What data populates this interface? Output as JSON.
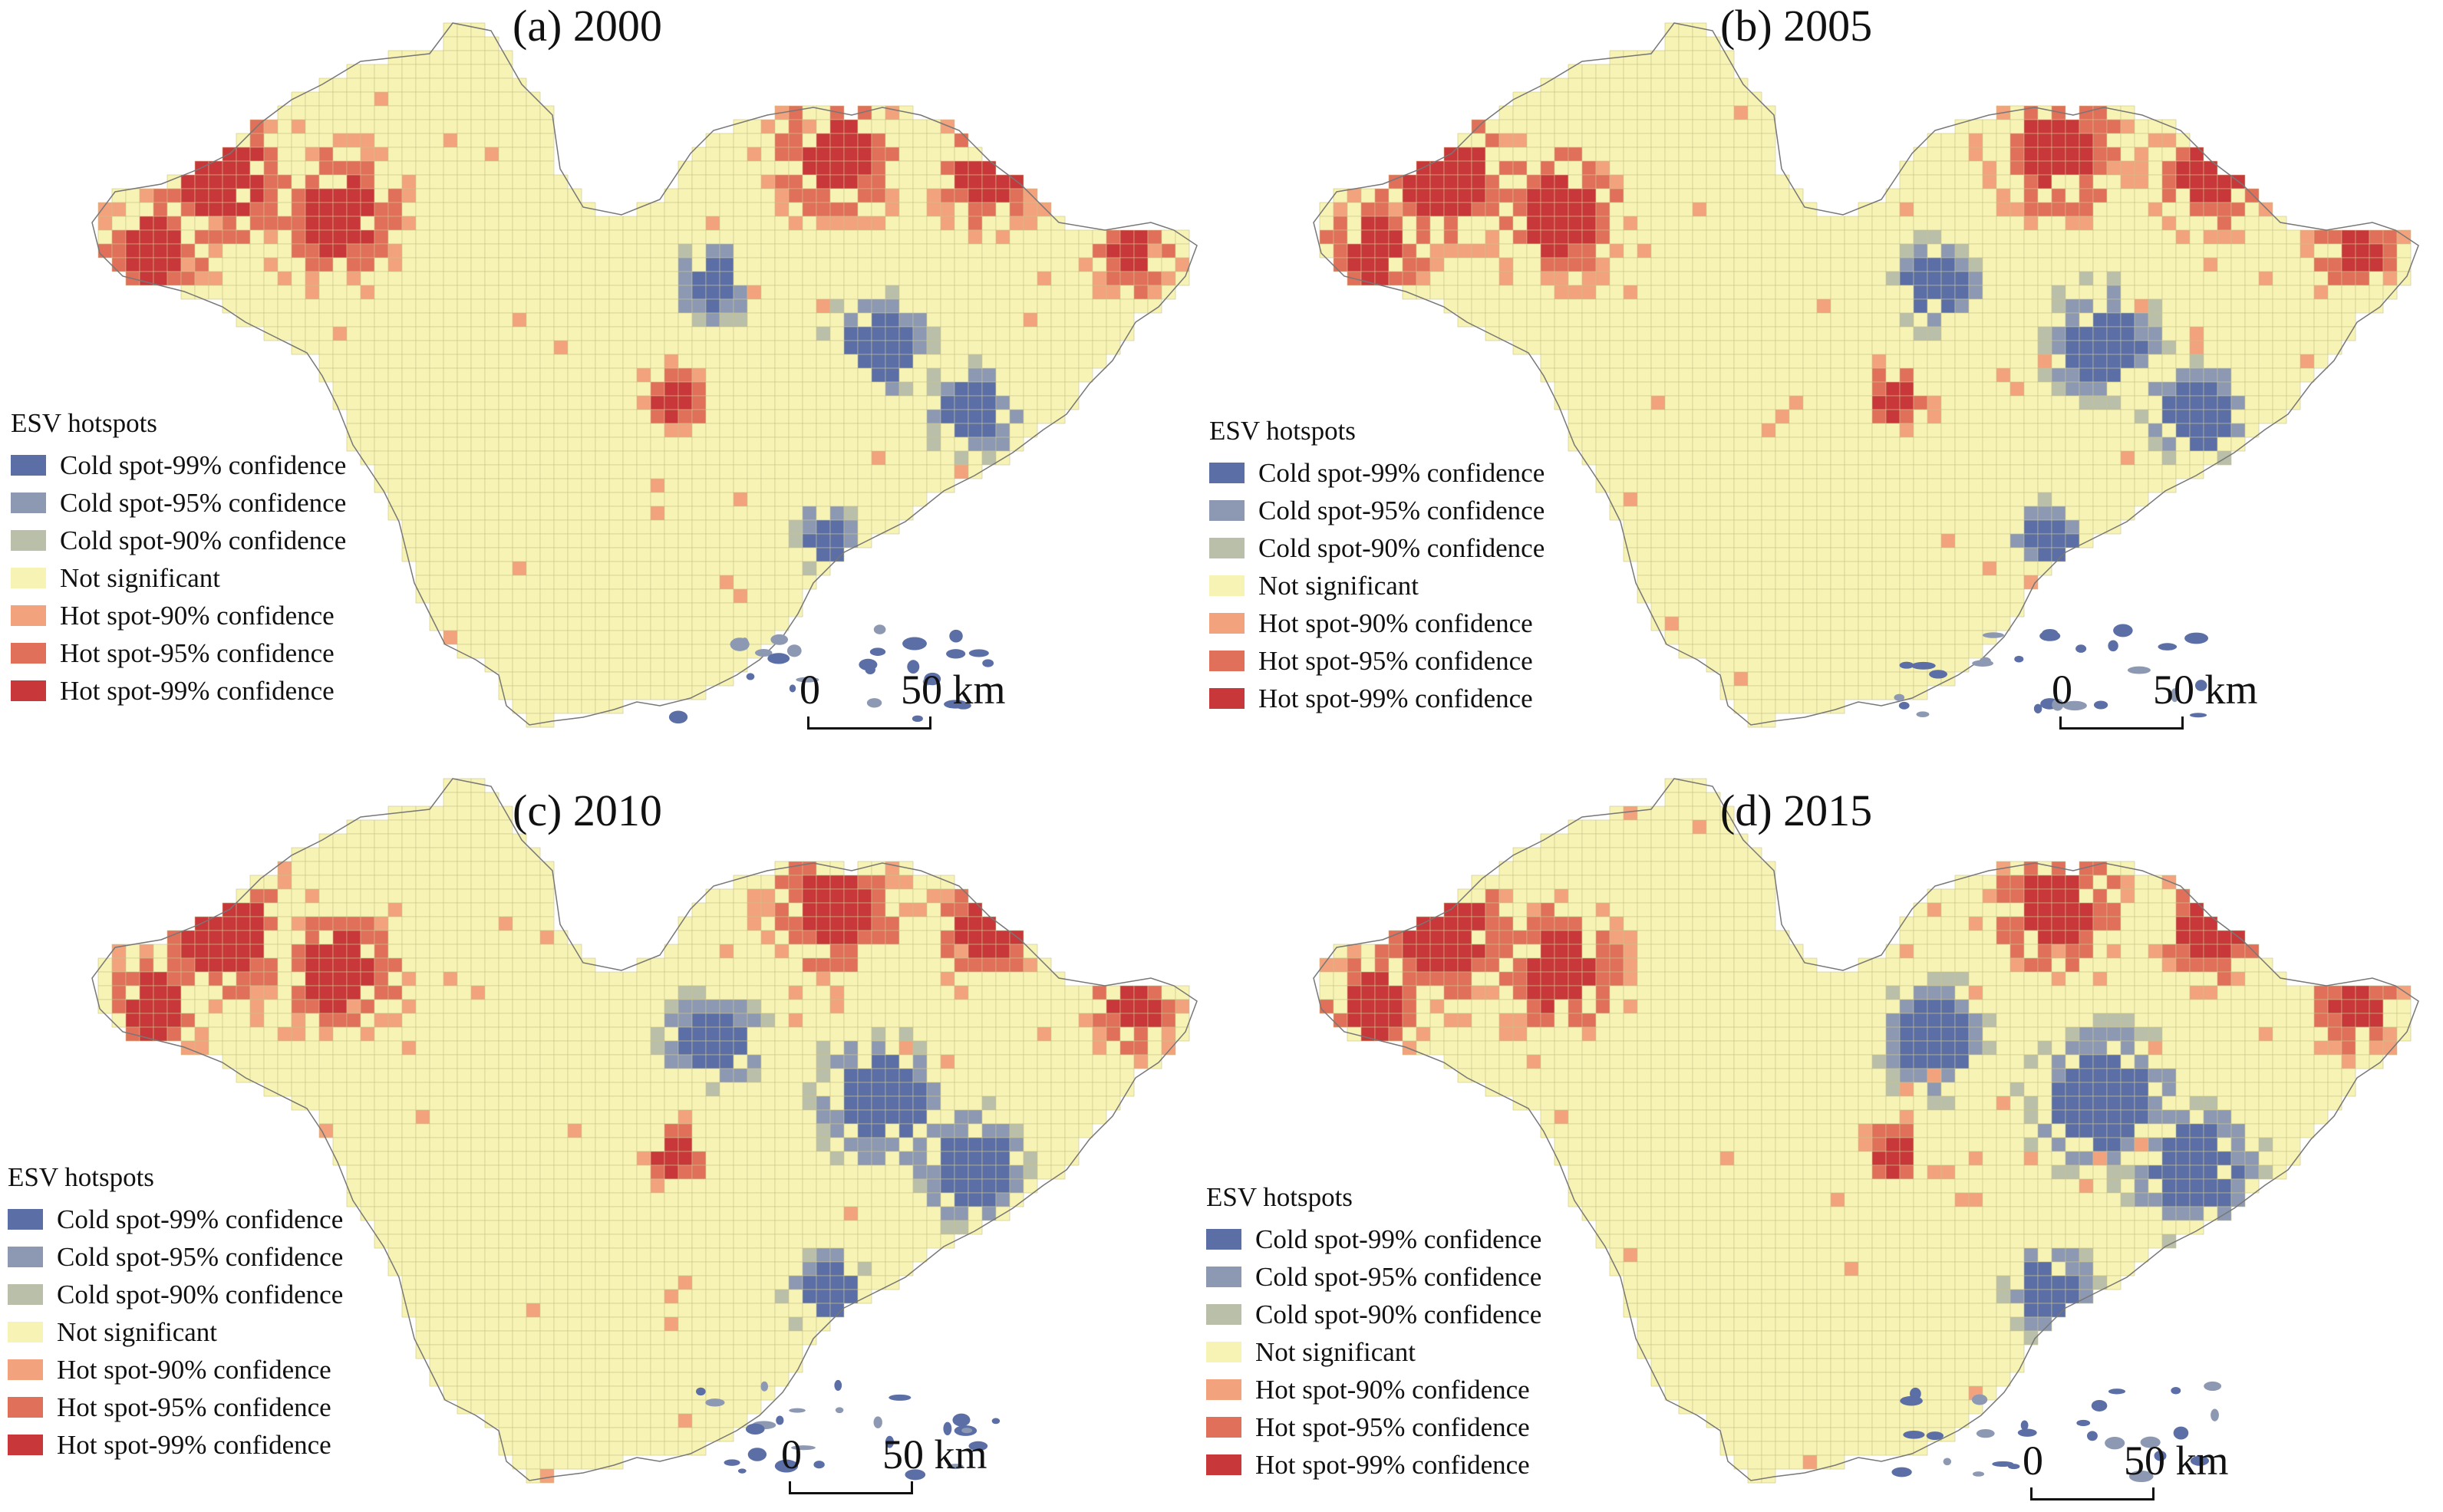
{
  "legend": {
    "title": "ESV hotspots",
    "items": [
      {
        "label": "Cold spot-99% confidence",
        "color": "#5b6ea5"
      },
      {
        "label": "Cold spot-95% confidence",
        "color": "#8d99b3"
      },
      {
        "label": "Cold spot-90% confidence",
        "color": "#b9bfa8"
      },
      {
        "label": "Not significant",
        "color": "#f7f3b4"
      },
      {
        "label": "Hot spot-90% confidence",
        "color": "#f2a37d"
      },
      {
        "label": "Hot spot-95% confidence",
        "color": "#e0705a"
      },
      {
        "label": "Hot spot-99% confidence",
        "color": "#c8383a"
      }
    ]
  },
  "scale_bar": {
    "zero": "0",
    "max": "50 km"
  },
  "panels": [
    {
      "id": "a",
      "title": "(a) 2000"
    },
    {
      "id": "b",
      "title": "(b) 2005"
    },
    {
      "id": "c",
      "title": "(c) 2010"
    },
    {
      "id": "d",
      "title": "(d) 2015"
    }
  ]
}
